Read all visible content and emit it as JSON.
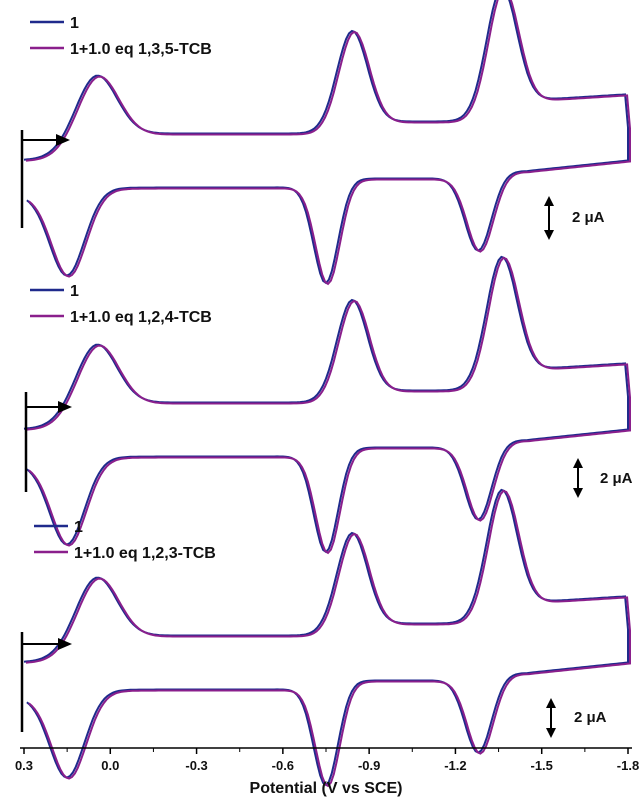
{
  "chart_data": [
    {
      "type": "line",
      "panel": 1,
      "series": [
        {
          "name": "1",
          "color": "#1f2a8c"
        },
        {
          "name": "1+1.0 eq 1,3,5-TCB",
          "color": "#8a1f8c"
        }
      ],
      "scale_bar_label": "2 μA"
    },
    {
      "type": "line",
      "panel": 2,
      "series": [
        {
          "name": "1",
          "color": "#1f2a8c"
        },
        {
          "name": "1+1.0 eq 1,2,4-TCB",
          "color": "#8a1f8c"
        }
      ],
      "scale_bar_label": "2 μA"
    },
    {
      "type": "line",
      "panel": 3,
      "series": [
        {
          "name": "1",
          "color": "#1f2a8c"
        },
        {
          "name": "1+1.0 eq 1,2,3-TCB",
          "color": "#8a1f8c"
        }
      ],
      "scale_bar_label": "2 μA"
    }
  ],
  "shared_x_axis": {
    "xlabel": "Potential (V vs SCE)",
    "xlim": [
      0.3,
      -1.8
    ],
    "ticks": [
      0.3,
      0.0,
      -0.3,
      -0.6,
      -0.9,
      -1.2,
      -1.5,
      -1.8
    ],
    "tick_labels": [
      "0.3",
      "0.0",
      "-0.3",
      "-0.6",
      "-0.9",
      "-1.2",
      "-1.5",
      "-1.8"
    ]
  },
  "cv_waves": {
    "anodic_peaks_V": [
      0.05,
      -0.84,
      -1.36
    ],
    "cathodic_peaks_V": [
      0.15,
      -0.75,
      -1.28
    ],
    "switch_potential_V": -1.8
  }
}
